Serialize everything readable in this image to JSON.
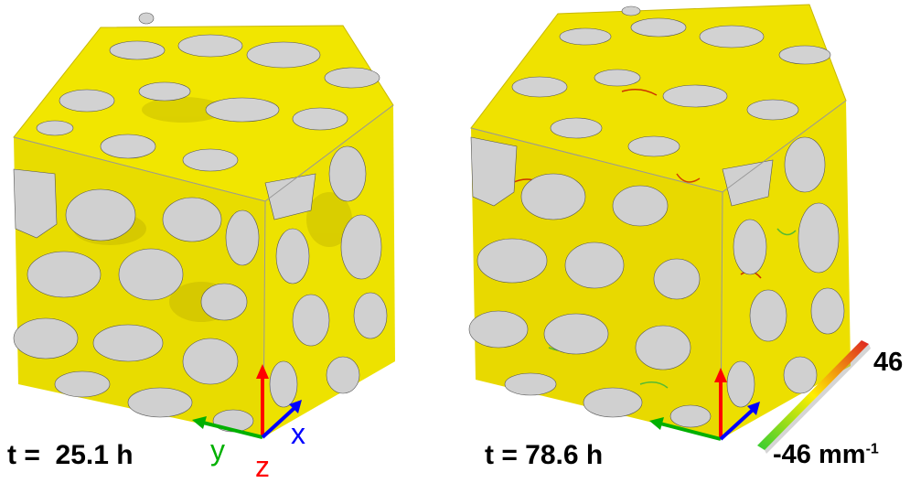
{
  "panels": [
    {
      "time_label": "t =  25.1 h"
    },
    {
      "time_label": "t = 78.6 h"
    }
  ],
  "axes": {
    "x": "x",
    "y": "y",
    "z": "z"
  },
  "colorbar": {
    "max_label": "46",
    "min_value": "-46",
    "unit_base": "mm",
    "unit_exp": "-1",
    "colors": [
      "#33cc33",
      "#ffee00",
      "#dd2222"
    ]
  },
  "colors": {
    "surface": "#f2e400",
    "cut_face": "#d0d0d0",
    "axis_x": "#0000ff",
    "axis_y": "#00b000",
    "axis_z": "#ff0000"
  }
}
